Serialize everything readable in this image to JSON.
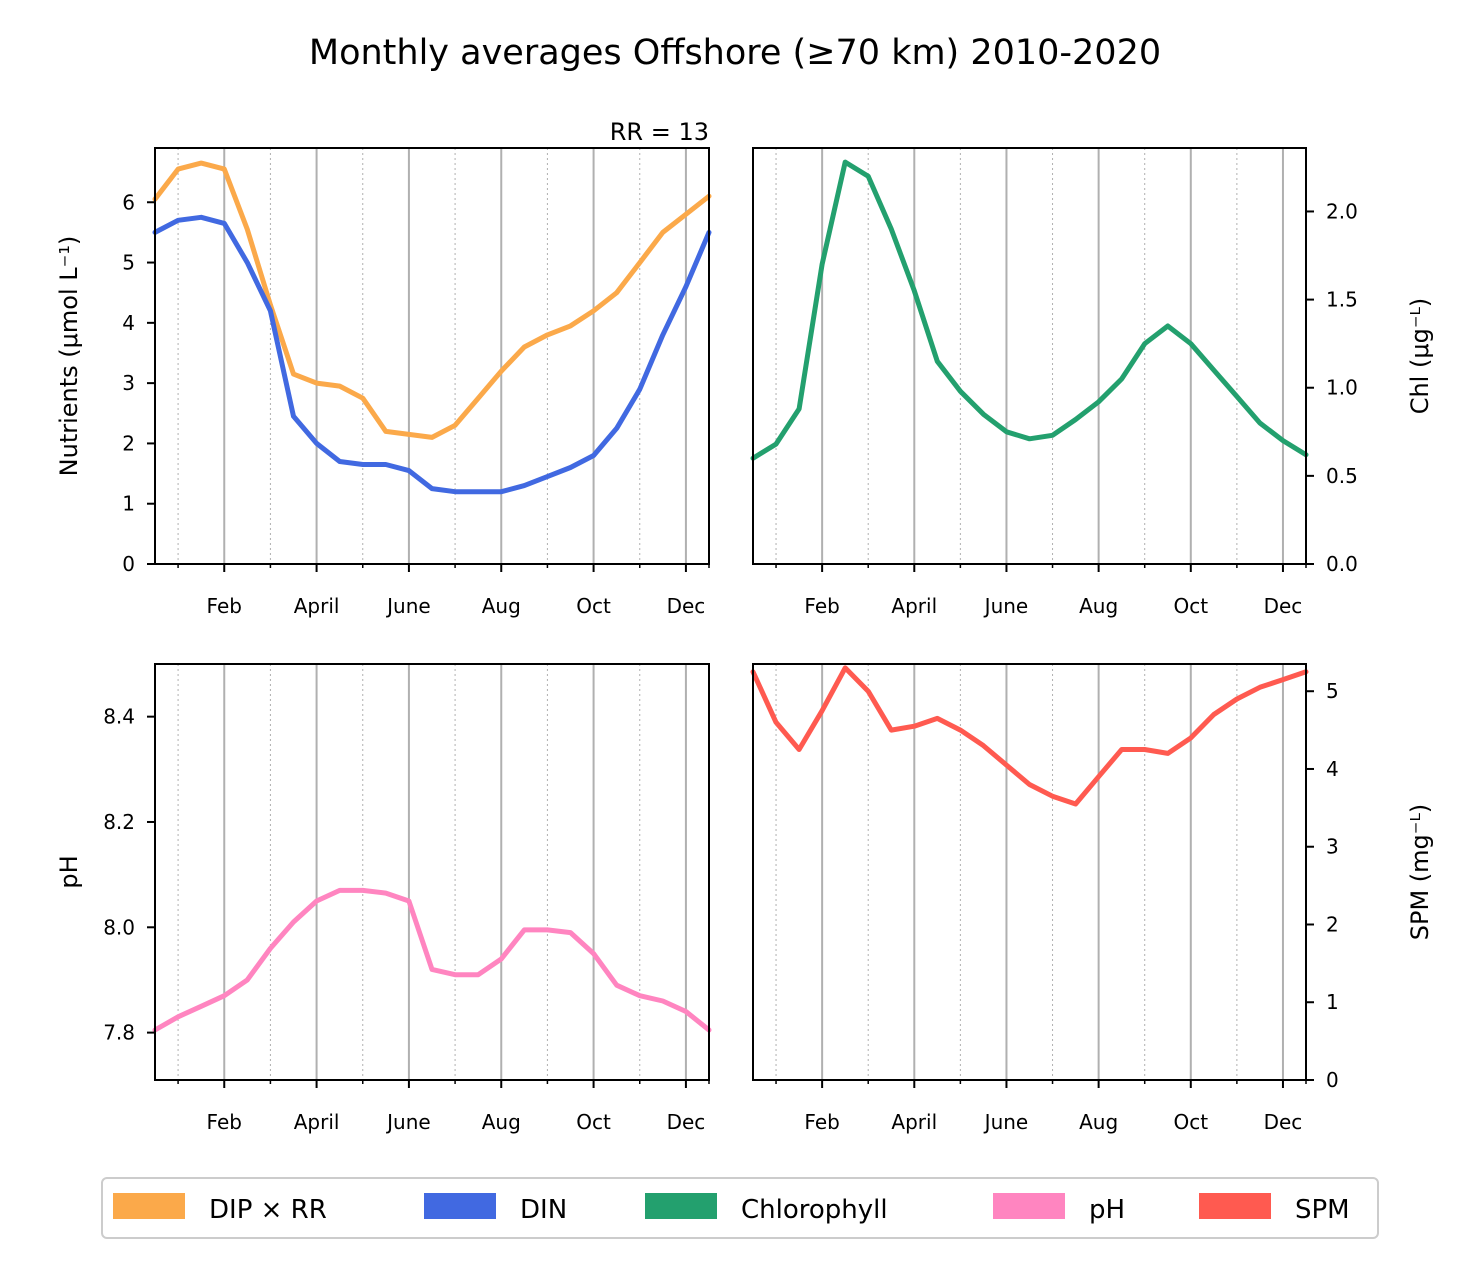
{
  "figure_title": "Monthly averages Offshore (≥70 km) 2010-2020",
  "colors": {
    "dip": "#FBA94A",
    "din": "#4169E1",
    "chl": "#23A06E",
    "ph": "#FF85C0",
    "spm": "#FF5A50"
  },
  "legend": [
    {
      "label": "DIP × RR",
      "color": "#FBA94A"
    },
    {
      "label": "DIN",
      "color": "#4169E1"
    },
    {
      "label": "Chlorophyll",
      "color": "#23A06E"
    },
    {
      "label": "pH",
      "color": "#FF85C0"
    },
    {
      "label": "SPM",
      "color": "#FF5A50"
    }
  ],
  "chart_data": [
    {
      "type": "line",
      "annotation": "RR = 13",
      "ylabel": "Nutrients (μmol L⁻¹)",
      "xlim": [
        0.5,
        12.5
      ],
      "ylim": [
        0,
        6.9
      ],
      "yticks": [
        0,
        1,
        2,
        3,
        4,
        5,
        6
      ],
      "ytick_labels": [
        "0",
        "1",
        "2",
        "3",
        "4",
        "5",
        "6"
      ],
      "xtick_labels": [
        "Feb",
        "April",
        "June",
        "Aug",
        "Oct",
        "Dec"
      ],
      "yaxis": "left",
      "series": [
        {
          "name": "DIP × RR",
          "color": "#FBA94A",
          "x": [
            0.5,
            1.0,
            1.5,
            2.0,
            2.5,
            3.0,
            3.5,
            4.0,
            4.5,
            5.0,
            5.5,
            6.0,
            6.5,
            7.0,
            7.5,
            8.0,
            8.5,
            9.0,
            9.5,
            10.0,
            10.5,
            11.0,
            11.5,
            12.0,
            12.5
          ],
          "y": [
            6.05,
            6.55,
            6.65,
            6.55,
            5.55,
            4.3,
            3.15,
            3.0,
            2.95,
            2.75,
            2.2,
            2.15,
            2.1,
            2.3,
            2.75,
            3.2,
            3.6,
            3.8,
            3.95,
            4.2,
            4.5,
            5.0,
            5.5,
            5.8,
            6.1
          ]
        },
        {
          "name": "DIN",
          "color": "#4169E1",
          "x": [
            0.5,
            1.0,
            1.5,
            2.0,
            2.5,
            3.0,
            3.5,
            4.0,
            4.5,
            5.0,
            5.5,
            6.0,
            6.5,
            7.0,
            7.5,
            8.0,
            8.5,
            9.0,
            9.5,
            10.0,
            10.5,
            11.0,
            11.5,
            12.0,
            12.5
          ],
          "y": [
            5.5,
            5.7,
            5.75,
            5.65,
            5.0,
            4.2,
            2.45,
            2.0,
            1.7,
            1.65,
            1.65,
            1.55,
            1.25,
            1.2,
            1.2,
            1.2,
            1.3,
            1.45,
            1.6,
            1.8,
            2.25,
            2.9,
            3.8,
            4.6,
            5.5
          ]
        }
      ]
    },
    {
      "type": "line",
      "ylabel": "Chl (μg⁻ᴸ)",
      "xlim": [
        0.5,
        12.5
      ],
      "ylim": [
        0,
        2.36
      ],
      "yticks": [
        0.0,
        0.5,
        1.0,
        1.5,
        2.0
      ],
      "ytick_labels": [
        "0.0",
        "0.5",
        "1.0",
        "1.5",
        "2.0"
      ],
      "xtick_labels": [
        "Feb",
        "April",
        "June",
        "Aug",
        "Oct",
        "Dec"
      ],
      "yaxis": "right",
      "series": [
        {
          "name": "Chlorophyll",
          "color": "#23A06E",
          "x": [
            0.5,
            1.0,
            1.5,
            2.0,
            2.5,
            3.0,
            3.5,
            4.0,
            4.5,
            5.0,
            5.5,
            6.0,
            6.5,
            7.0,
            7.5,
            8.0,
            8.5,
            9.0,
            9.5,
            10.0,
            10.5,
            11.0,
            11.5,
            12.0,
            12.5
          ],
          "y": [
            0.6,
            0.68,
            0.88,
            1.7,
            2.28,
            2.2,
            1.9,
            1.55,
            1.15,
            0.98,
            0.85,
            0.75,
            0.71,
            0.73,
            0.82,
            0.92,
            1.05,
            1.25,
            1.35,
            1.25,
            1.1,
            0.95,
            0.8,
            0.7,
            0.62
          ]
        }
      ]
    },
    {
      "type": "line",
      "ylabel": "pH",
      "xlim": [
        0.5,
        12.5
      ],
      "ylim": [
        7.71,
        8.5
      ],
      "yticks": [
        7.8,
        8.0,
        8.2,
        8.4
      ],
      "ytick_labels": [
        "7.8",
        "8.0",
        "8.2",
        "8.4"
      ],
      "xtick_labels": [
        "Feb",
        "April",
        "June",
        "Aug",
        "Oct",
        "Dec"
      ],
      "yaxis": "left",
      "series": [
        {
          "name": "pH",
          "color": "#FF85C0",
          "x": [
            0.5,
            1.0,
            1.5,
            2.0,
            2.5,
            3.0,
            3.5,
            4.0,
            4.5,
            5.0,
            5.5,
            6.0,
            6.5,
            7.0,
            7.5,
            8.0,
            8.5,
            9.0,
            9.5,
            10.0,
            10.5,
            11.0,
            11.5,
            12.0,
            12.5
          ],
          "y": [
            7.805,
            7.83,
            7.85,
            7.87,
            7.9,
            7.96,
            8.01,
            8.05,
            8.07,
            8.07,
            8.065,
            8.05,
            7.92,
            7.91,
            7.91,
            7.94,
            7.995,
            7.995,
            7.99,
            7.95,
            7.89,
            7.87,
            7.86,
            7.84,
            7.805
          ]
        }
      ]
    },
    {
      "type": "line",
      "ylabel": "SPM (mg⁻ᴸ)",
      "xlim": [
        0.5,
        12.5
      ],
      "ylim": [
        0,
        5.35
      ],
      "yticks": [
        0,
        1,
        2,
        3,
        4,
        5
      ],
      "ytick_labels": [
        "0",
        "1",
        "2",
        "3",
        "4",
        "5"
      ],
      "xtick_labels": [
        "Feb",
        "April",
        "June",
        "Aug",
        "Oct",
        "Dec"
      ],
      "yaxis": "right",
      "series": [
        {
          "name": "SPM",
          "color": "#FF5A50",
          "x": [
            0.5,
            1.0,
            1.5,
            2.0,
            2.5,
            3.0,
            3.5,
            4.0,
            4.5,
            5.0,
            5.5,
            6.0,
            6.5,
            7.0,
            7.5,
            8.0,
            8.5,
            9.0,
            9.5,
            10.0,
            10.5,
            11.0,
            11.5,
            12.0,
            12.5
          ],
          "y": [
            5.25,
            4.6,
            4.25,
            4.75,
            5.3,
            5.0,
            4.5,
            4.55,
            4.65,
            4.5,
            4.3,
            4.05,
            3.8,
            3.65,
            3.55,
            3.9,
            4.25,
            4.25,
            4.2,
            4.4,
            4.7,
            4.9,
            5.05,
            5.15,
            5.25
          ]
        }
      ]
    }
  ]
}
